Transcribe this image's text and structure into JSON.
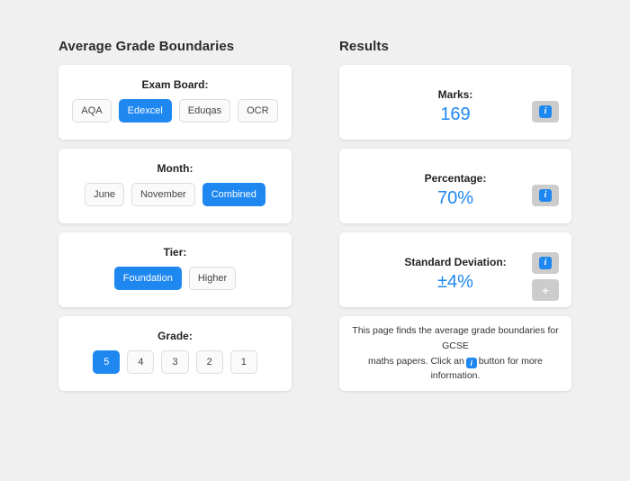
{
  "colors": {
    "accent": "#1e87f0",
    "page_bg": "#f0f0f0",
    "card_bg": "#ffffff",
    "info_button_bg": "#cccccc",
    "value_text": "#1e87f0"
  },
  "icons": {
    "info_glyph": "i",
    "expand_glyph": "+"
  },
  "left": {
    "heading": "Average Grade Boundaries",
    "cards": [
      {
        "label": "Exam Board:",
        "options": [
          "AQA",
          "Edexcel",
          "Eduqas",
          "OCR"
        ],
        "selected": "Edexcel"
      },
      {
        "label": "Month:",
        "options": [
          "June",
          "November",
          "Combined"
        ],
        "selected": "Combined"
      },
      {
        "label": "Tier:",
        "options": [
          "Foundation",
          "Higher"
        ],
        "selected": "Foundation"
      },
      {
        "label": "Grade:",
        "options": [
          "5",
          "4",
          "3",
          "2",
          "1"
        ],
        "selected": "5"
      }
    ]
  },
  "right": {
    "heading": "Results",
    "results": [
      {
        "label": "Marks:",
        "value": "169"
      },
      {
        "label": "Percentage:",
        "value": "70%"
      },
      {
        "label": "Standard Deviation:",
        "value": "±4%"
      }
    ],
    "description": {
      "line1": "This page finds the average grade boundaries for GCSE",
      "line2_before_icon": "maths papers. Click an",
      "line2_after_icon": "button for more information."
    }
  }
}
